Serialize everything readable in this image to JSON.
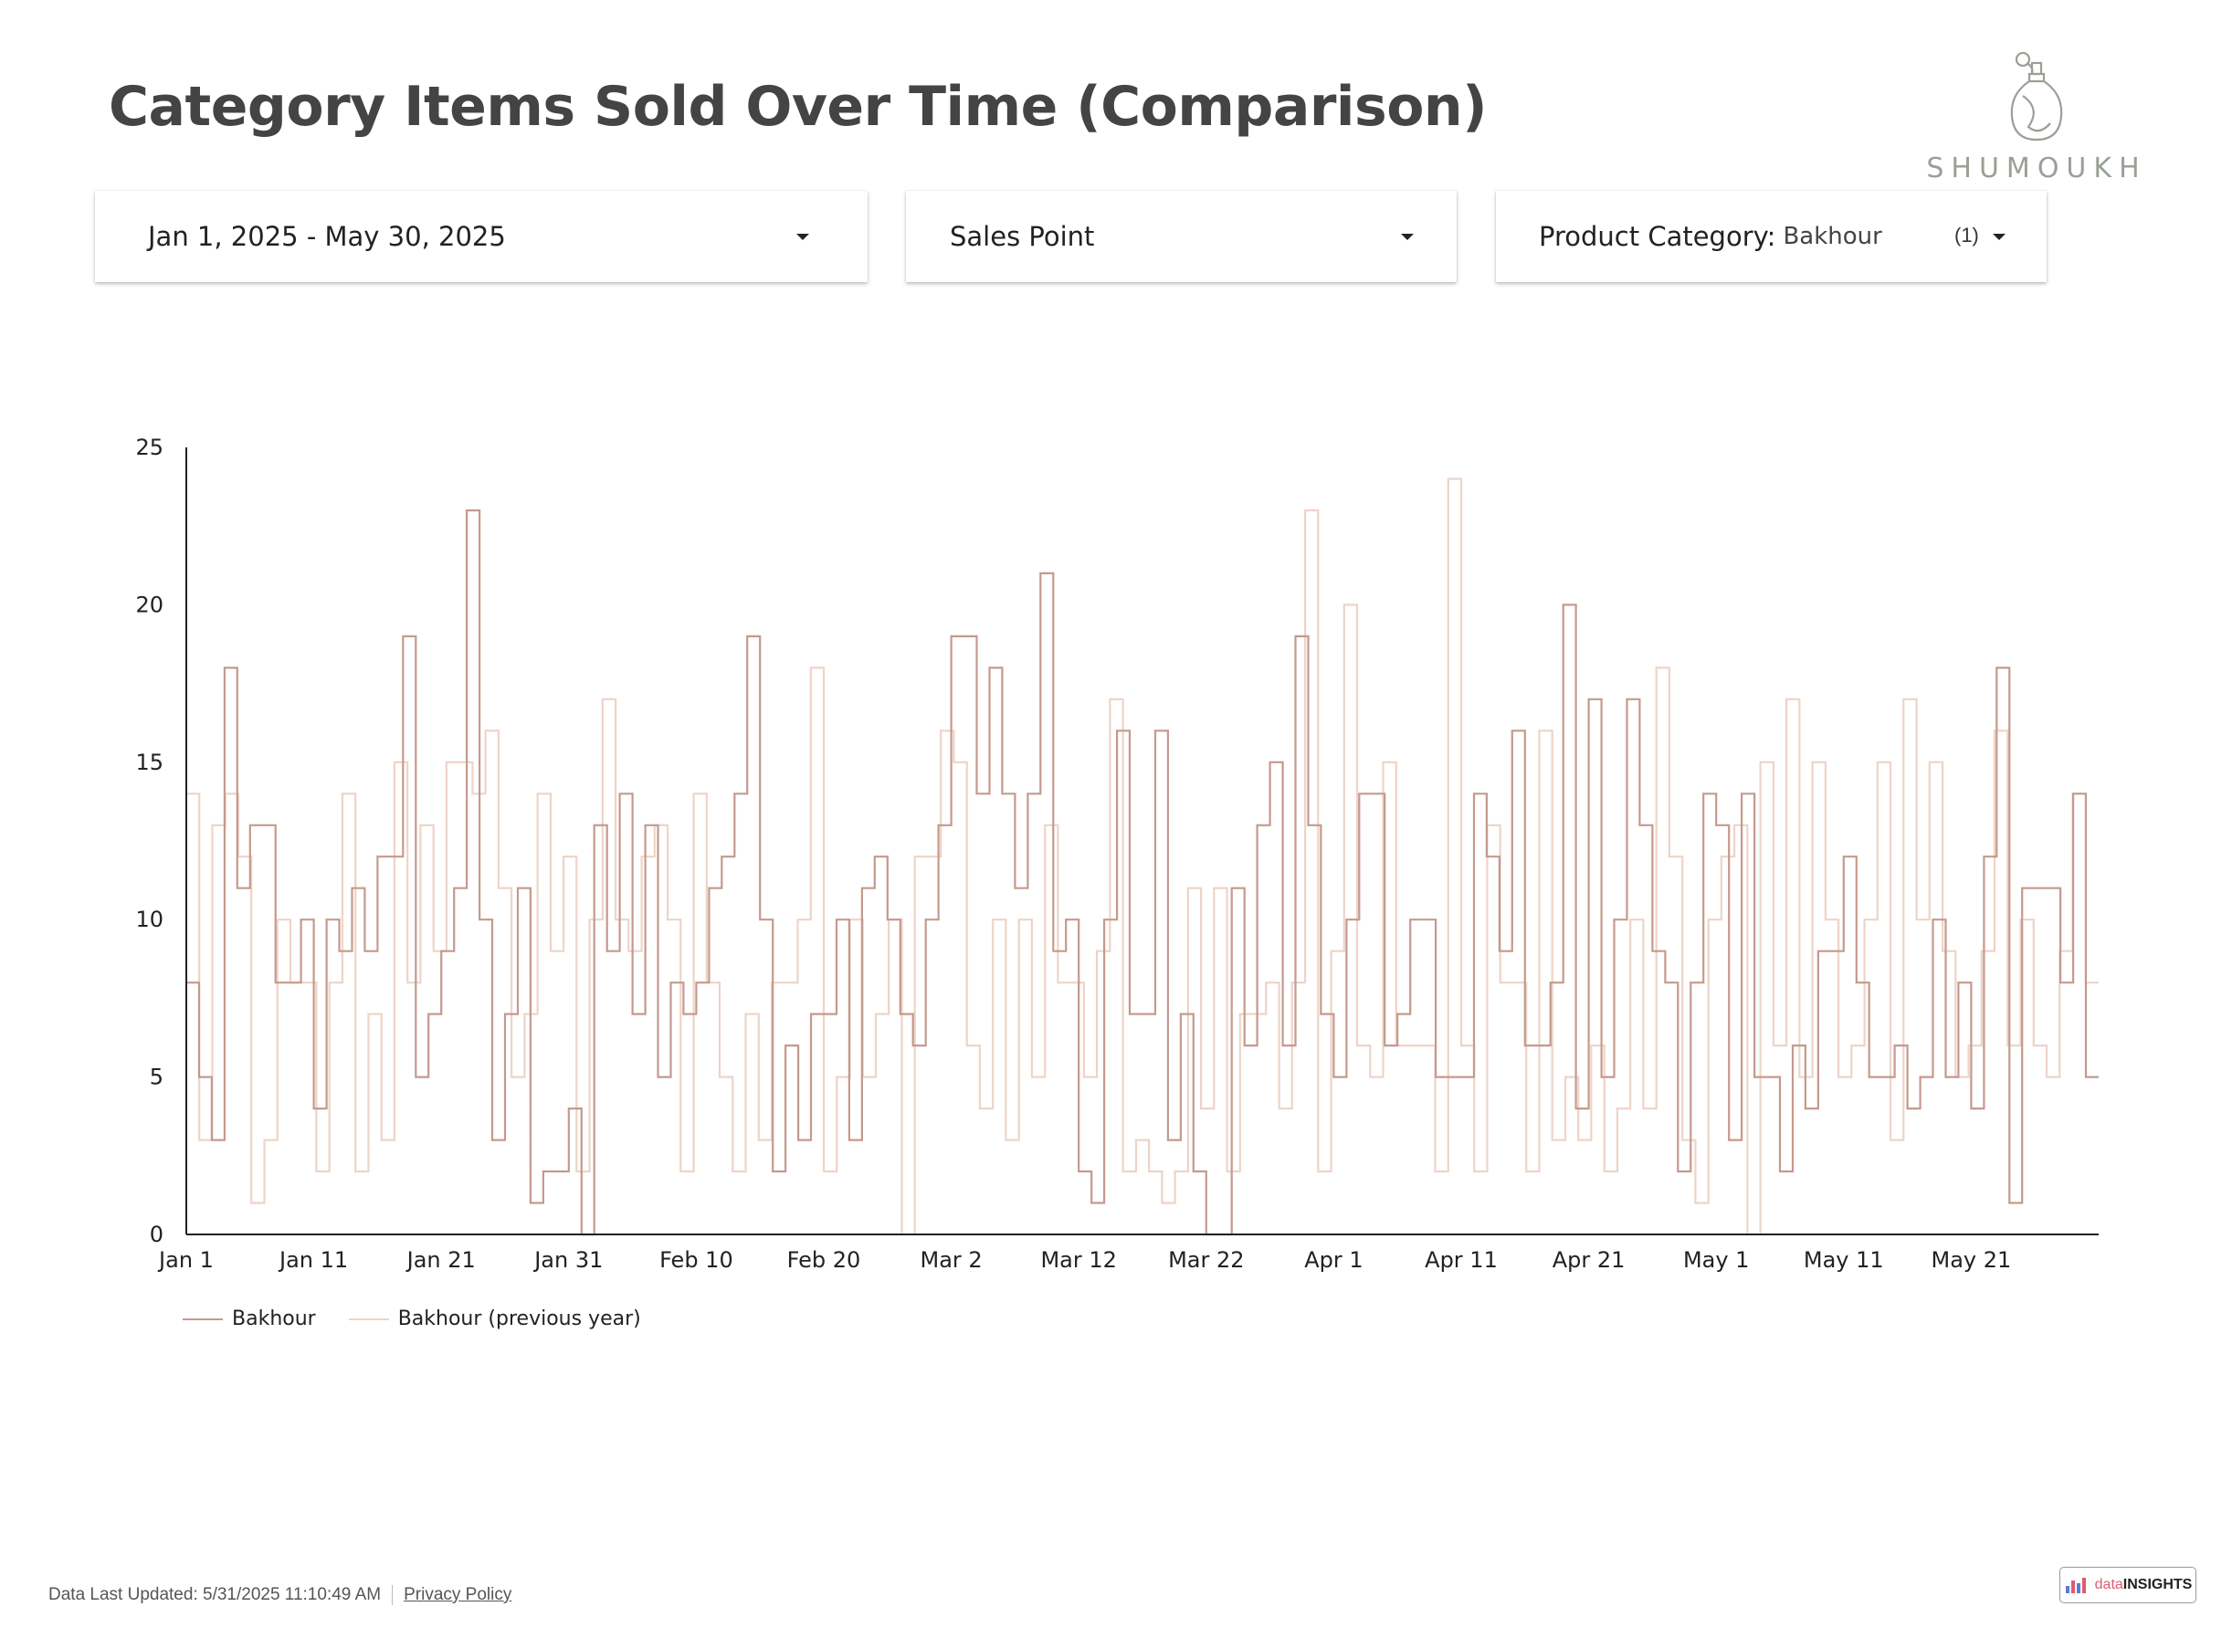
{
  "header": {
    "title": "Category Items Sold Over Time (Comparison)"
  },
  "brand": {
    "logo_text": "SHUMOUKH"
  },
  "filters": {
    "date_range": "Jan 1, 2025 - May 30, 2025",
    "sales_point": "Sales Point",
    "product_category_label": "Product Category:",
    "product_category_value": "Bakhour",
    "product_category_count": "(1)"
  },
  "colors": {
    "current": "#c49a8c",
    "previous": "#edd4c8",
    "axis": "#222222"
  },
  "chart_data": {
    "type": "line",
    "step": true,
    "title": "",
    "xlabel": "",
    "ylabel": "",
    "ylim": [
      0,
      25
    ],
    "y_ticks": [
      "0",
      "5",
      "10",
      "15",
      "20",
      "25"
    ],
    "x_ticks": [
      "Jan 1",
      "Jan 11",
      "Jan 21",
      "Jan 31",
      "Feb 10",
      "Feb 20",
      "Mar 2",
      "Mar 12",
      "Mar 22",
      "Apr 1",
      "Apr 11",
      "Apr 21",
      "May 1",
      "May 11",
      "May 21"
    ],
    "x_start": "Jan 1",
    "x_end": "May 30",
    "grid": false,
    "legend_position": "bottom-left",
    "series": [
      {
        "name": "Bakhour",
        "values": [
          8,
          5,
          3,
          18,
          11,
          13,
          13,
          8,
          8,
          10,
          4,
          10,
          9,
          11,
          9,
          12,
          12,
          19,
          5,
          7,
          9,
          11,
          23,
          10,
          3,
          7,
          11,
          1,
          2,
          2,
          4,
          0,
          13,
          9,
          14,
          7,
          13,
          5,
          8,
          7,
          8,
          11,
          12,
          14,
          19,
          10,
          2,
          6,
          3,
          7,
          7,
          10,
          3,
          11,
          12,
          10,
          7,
          6,
          10,
          13,
          19,
          19,
          14,
          18,
          14,
          11,
          14,
          21,
          9,
          10,
          2,
          1,
          10,
          16,
          7,
          7,
          16,
          3,
          7,
          2,
          0,
          0,
          11,
          6,
          13,
          15,
          6,
          19,
          13,
          7,
          5,
          10,
          14,
          14,
          6,
          7,
          10,
          10,
          5,
          5,
          5,
          14,
          12,
          9,
          16,
          6,
          6,
          8,
          20,
          4,
          17,
          5,
          10,
          17,
          13,
          9,
          8,
          2,
          8,
          14,
          13,
          3,
          14,
          5,
          5,
          2,
          6,
          4,
          9,
          9,
          12,
          8,
          5,
          5,
          6,
          4,
          5,
          10,
          5,
          8,
          4,
          12,
          18,
          1,
          11,
          11,
          11,
          8,
          14,
          5
        ]
      },
      {
        "name": "Bakhour (previous year)",
        "values": [
          14,
          3,
          13,
          14,
          12,
          1,
          3,
          10,
          8,
          8,
          2,
          8,
          14,
          2,
          7,
          3,
          15,
          8,
          13,
          9,
          15,
          15,
          14,
          16,
          11,
          5,
          7,
          14,
          9,
          12,
          2,
          10,
          17,
          10,
          9,
          12,
          13,
          10,
          2,
          14,
          8,
          5,
          2,
          7,
          3,
          8,
          8,
          10,
          18,
          2,
          5,
          10,
          5,
          7,
          10,
          0,
          12,
          12,
          16,
          15,
          6,
          4,
          10,
          3,
          10,
          5,
          13,
          8,
          8,
          5,
          9,
          17,
          2,
          3,
          2,
          1,
          2,
          11,
          4,
          11,
          2,
          7,
          7,
          8,
          4,
          8,
          23,
          2,
          9,
          20,
          6,
          5,
          15,
          6,
          6,
          6,
          2,
          24,
          6,
          2,
          13,
          8,
          8,
          2,
          16,
          3,
          5,
          3,
          6,
          2,
          4,
          10,
          4,
          18,
          12,
          3,
          1,
          10,
          12,
          13,
          0,
          15,
          6,
          17,
          5,
          15,
          10,
          5,
          6,
          10,
          15,
          3,
          17,
          10,
          15,
          9,
          5,
          6,
          9,
          16,
          6,
          10,
          6,
          5,
          9,
          14,
          8
        ]
      }
    ]
  },
  "footer": {
    "last_updated": "Data Last Updated: 5/31/2025 11:10:49 AM",
    "privacy_link": "Privacy Policy",
    "badge_part1": "data",
    "badge_part2": "INSIGHTS"
  }
}
